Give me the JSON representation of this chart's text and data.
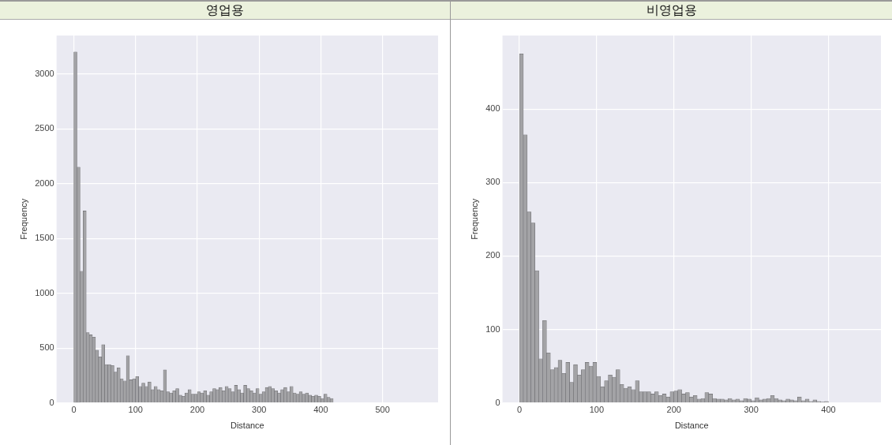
{
  "chart_data": [
    {
      "type": "histogram",
      "title": "영업용",
      "xlabel": "Distance",
      "ylabel": "Frequency",
      "color": "#a3a3a6",
      "grid": true,
      "bins": [
        0,
        5,
        10,
        15,
        20,
        25,
        30,
        35,
        40,
        45,
        50,
        55,
        60,
        65,
        70,
        75,
        80,
        85,
        90,
        95,
        100,
        105,
        110,
        115,
        120,
        125,
        130,
        135,
        140,
        145,
        150,
        155,
        160,
        165,
        170,
        175,
        180,
        185,
        190,
        195,
        200,
        205,
        210,
        215,
        220,
        225,
        230,
        235,
        240,
        245,
        250,
        255,
        260,
        265,
        270,
        275,
        280,
        285,
        290,
        295,
        300,
        305,
        310,
        315,
        320,
        325,
        330,
        335,
        340,
        345,
        350,
        355,
        360,
        365,
        370,
        375,
        380,
        385,
        390,
        395,
        400,
        405,
        410,
        415,
        420
      ],
      "values": [
        3200,
        2150,
        1200,
        1750,
        640,
        620,
        600,
        480,
        420,
        530,
        350,
        350,
        340,
        280,
        320,
        220,
        200,
        430,
        210,
        220,
        240,
        150,
        180,
        150,
        190,
        120,
        150,
        120,
        110,
        300,
        100,
        90,
        110,
        130,
        70,
        60,
        90,
        120,
        80,
        80,
        100,
        90,
        110,
        70,
        100,
        130,
        120,
        140,
        110,
        150,
        130,
        100,
        160,
        120,
        90,
        160,
        130,
        110,
        90,
        130,
        80,
        100,
        140,
        150,
        130,
        110,
        90,
        120,
        140,
        100,
        150,
        90,
        80,
        100,
        80,
        90,
        70,
        60,
        70,
        60,
        40,
        80,
        50,
        40
      ],
      "xlim": [
        -28,
        590
      ],
      "xticks": [
        0,
        100,
        200,
        300,
        400,
        500
      ],
      "ylim": [
        0,
        3350
      ],
      "yticks": [
        0,
        500,
        1000,
        1500,
        2000,
        2500,
        3000
      ]
    },
    {
      "type": "histogram",
      "title": "비영업용",
      "xlabel": "Distance",
      "ylabel": "Frequency",
      "color": "#a3a3a6",
      "grid": true,
      "bins": [
        0,
        5,
        10,
        15,
        20,
        25,
        30,
        35,
        40,
        45,
        50,
        55,
        60,
        65,
        70,
        75,
        80,
        85,
        90,
        95,
        100,
        105,
        110,
        115,
        120,
        125,
        130,
        135,
        140,
        145,
        150,
        155,
        160,
        165,
        170,
        175,
        180,
        185,
        190,
        195,
        200,
        205,
        210,
        215,
        220,
        225,
        230,
        235,
        240,
        245,
        250,
        255,
        260,
        265,
        270,
        275,
        280,
        285,
        290,
        295,
        300,
        305,
        310,
        315,
        320,
        325,
        330,
        335,
        340,
        345,
        350,
        355,
        360,
        365,
        370,
        375,
        380,
        385,
        390,
        395,
        400
      ],
      "values": [
        475,
        365,
        260,
        245,
        180,
        60,
        112,
        68,
        45,
        48,
        58,
        40,
        55,
        28,
        52,
        38,
        45,
        55,
        50,
        55,
        36,
        22,
        30,
        38,
        35,
        45,
        25,
        20,
        22,
        18,
        30,
        15,
        15,
        15,
        12,
        15,
        10,
        12,
        8,
        15,
        16,
        18,
        12,
        14,
        8,
        10,
        5,
        6,
        14,
        12,
        6,
        5,
        5,
        4,
        6,
        4,
        5,
        3,
        6,
        5,
        3,
        7,
        4,
        5,
        6,
        10,
        6,
        4,
        3,
        5,
        4,
        3,
        8,
        3,
        5,
        2,
        4,
        2,
        0,
        2
      ],
      "xlim": [
        -22,
        468
      ],
      "xticks": [
        0,
        100,
        200,
        300,
        400
      ],
      "ylim": [
        0,
        500
      ],
      "yticks": [
        0,
        100,
        200,
        300,
        400
      ]
    }
  ]
}
